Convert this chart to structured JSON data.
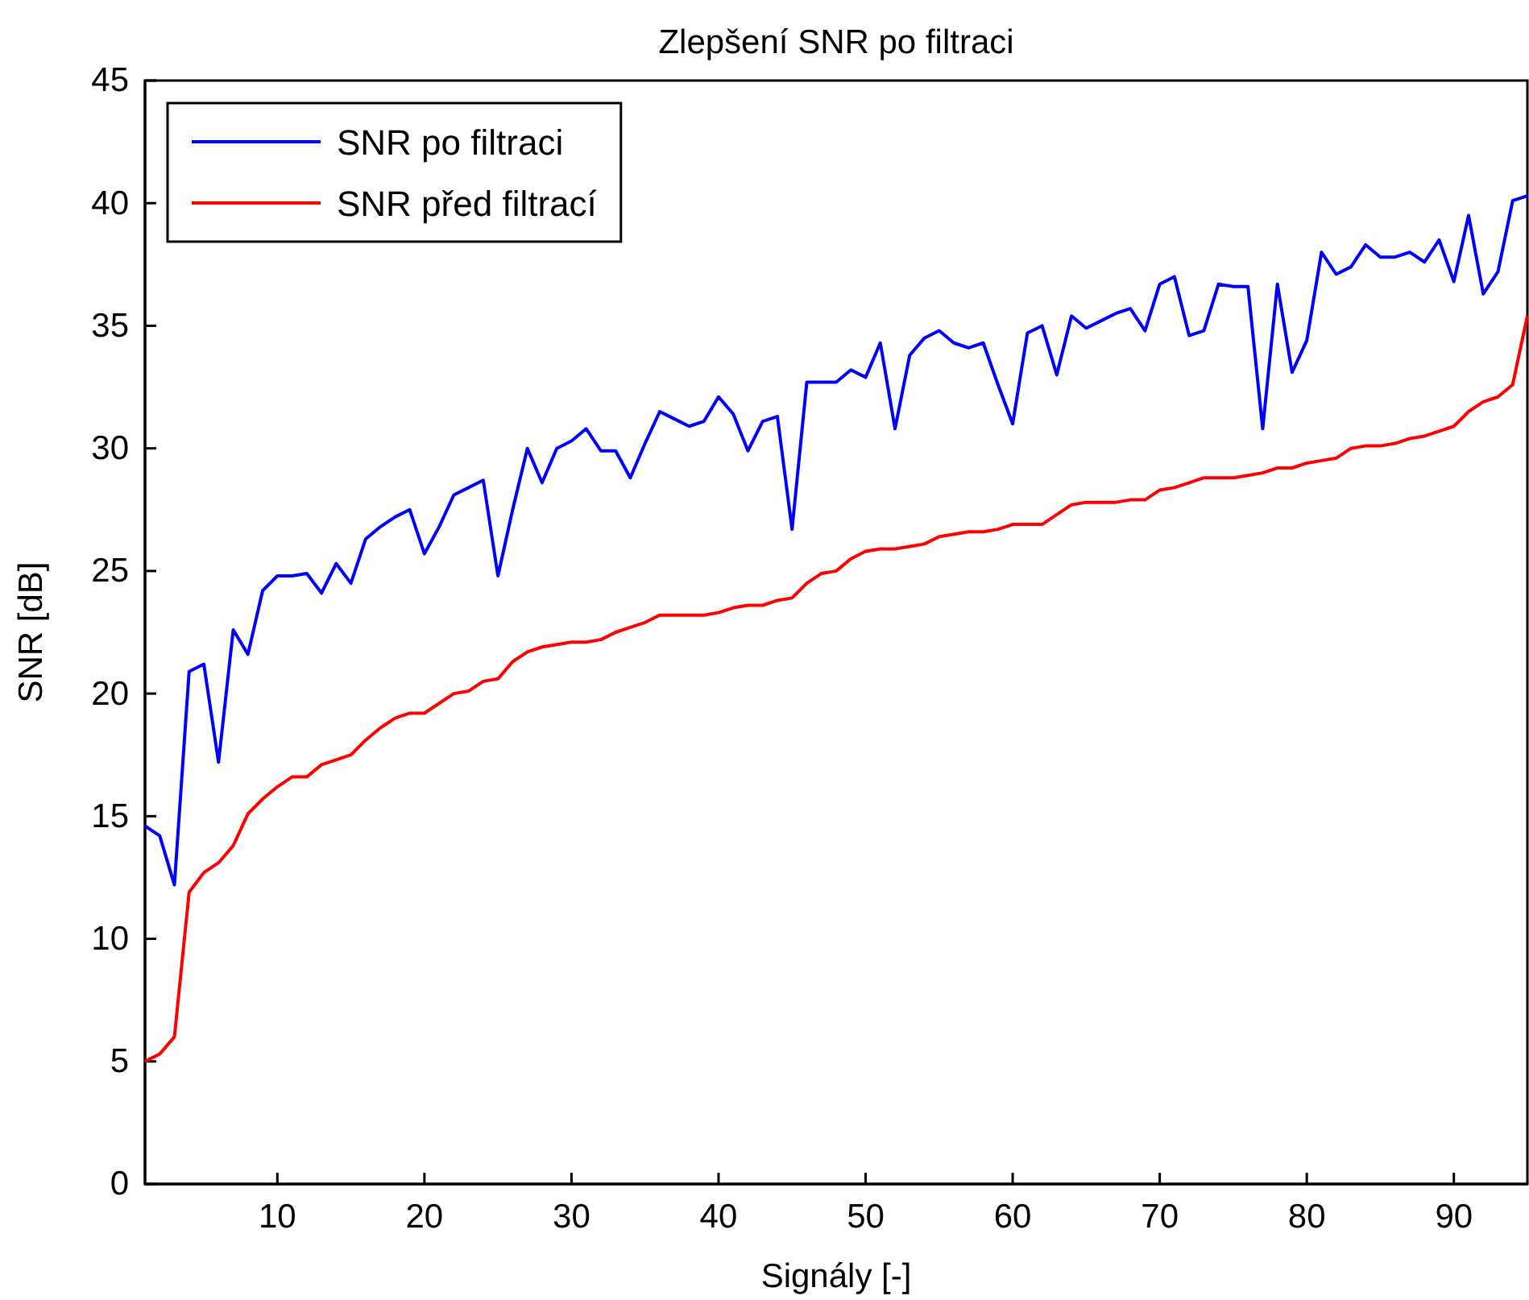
{
  "chart_data": {
    "type": "line",
    "title": "Zlepšení SNR po filtraci",
    "xlabel": "Signály [-]",
    "ylabel": "SNR [dB]",
    "x": [
      1,
      2,
      3,
      4,
      5,
      6,
      7,
      8,
      9,
      10,
      11,
      12,
      13,
      14,
      15,
      16,
      17,
      18,
      19,
      20,
      21,
      22,
      23,
      24,
      25,
      26,
      27,
      28,
      29,
      30,
      31,
      32,
      33,
      34,
      35,
      36,
      37,
      38,
      39,
      40,
      41,
      42,
      43,
      44,
      45,
      46,
      47,
      48,
      49,
      50,
      51,
      52,
      53,
      54,
      55,
      56,
      57,
      58,
      59,
      60,
      61,
      62,
      63,
      64,
      65,
      66,
      67,
      68,
      69,
      70,
      71,
      72,
      73,
      74,
      75,
      76,
      77,
      78,
      79,
      80,
      81,
      82,
      83,
      84,
      85,
      86,
      87,
      88,
      89,
      90,
      91,
      92,
      93,
      94,
      95
    ],
    "xlim": [
      1,
      95
    ],
    "xticks": [
      10,
      20,
      30,
      40,
      50,
      60,
      70,
      80,
      90
    ],
    "ylim": [
      0,
      45
    ],
    "yticks": [
      0,
      5,
      10,
      15,
      20,
      25,
      30,
      35,
      40,
      45
    ],
    "grid": false,
    "legend": "top left",
    "line_style": "solid",
    "marker": "none",
    "series": [
      {
        "name": "SNR po filtraci",
        "color": "#0000ff",
        "values": [
          14.6,
          14.2,
          12.2,
          20.9,
          21.2,
          17.2,
          22.6,
          21.6,
          24.2,
          24.8,
          24.8,
          24.9,
          24.1,
          25.3,
          24.5,
          26.3,
          26.8,
          27.2,
          27.5,
          25.7,
          26.8,
          28.1,
          28.4,
          28.7,
          24.8,
          27.5,
          30.0,
          28.6,
          30.0,
          30.3,
          30.8,
          29.9,
          29.9,
          28.8,
          30.2,
          31.5,
          31.2,
          30.9,
          31.1,
          32.1,
          31.4,
          29.9,
          31.1,
          31.3,
          26.7,
          32.7,
          32.7,
          32.7,
          33.2,
          32.9,
          34.3,
          30.8,
          33.8,
          34.5,
          34.8,
          34.3,
          34.1,
          34.3,
          32.6,
          31.0,
          34.7,
          35.0,
          33.0,
          35.4,
          34.9,
          35.2,
          35.5,
          35.7,
          34.8,
          36.7,
          37.0,
          34.6,
          34.8,
          36.7,
          36.6,
          36.6,
          30.8,
          36.7,
          33.1,
          34.4,
          38.0,
          37.1,
          37.4,
          38.3,
          37.8,
          37.8,
          38.0,
          37.6,
          38.5,
          36.8,
          39.5,
          36.3,
          37.2,
          40.1,
          40.3
        ]
      },
      {
        "name": "SNR před filtrací",
        "color": "#ff0000",
        "values": [
          5.0,
          5.3,
          6.0,
          11.9,
          12.7,
          13.1,
          13.8,
          15.1,
          15.7,
          16.2,
          16.6,
          16.6,
          17.1,
          17.3,
          17.5,
          18.1,
          18.6,
          19.0,
          19.2,
          19.2,
          19.6,
          20.0,
          20.1,
          20.5,
          20.6,
          21.3,
          21.7,
          21.9,
          22.0,
          22.1,
          22.1,
          22.2,
          22.5,
          22.7,
          22.9,
          23.2,
          23.2,
          23.2,
          23.2,
          23.3,
          23.5,
          23.6,
          23.6,
          23.8,
          23.9,
          24.5,
          24.9,
          25.0,
          25.5,
          25.8,
          25.9,
          25.9,
          26.0,
          26.1,
          26.4,
          26.5,
          26.6,
          26.6,
          26.7,
          26.9,
          26.9,
          26.9,
          27.3,
          27.7,
          27.8,
          27.8,
          27.8,
          27.9,
          27.9,
          28.3,
          28.4,
          28.6,
          28.8,
          28.8,
          28.8,
          28.9,
          29.0,
          29.2,
          29.2,
          29.4,
          29.5,
          29.6,
          30.0,
          30.1,
          30.1,
          30.2,
          30.4,
          30.5,
          30.7,
          30.9,
          31.5,
          31.9,
          32.1,
          32.6,
          35.4
        ]
      }
    ]
  }
}
